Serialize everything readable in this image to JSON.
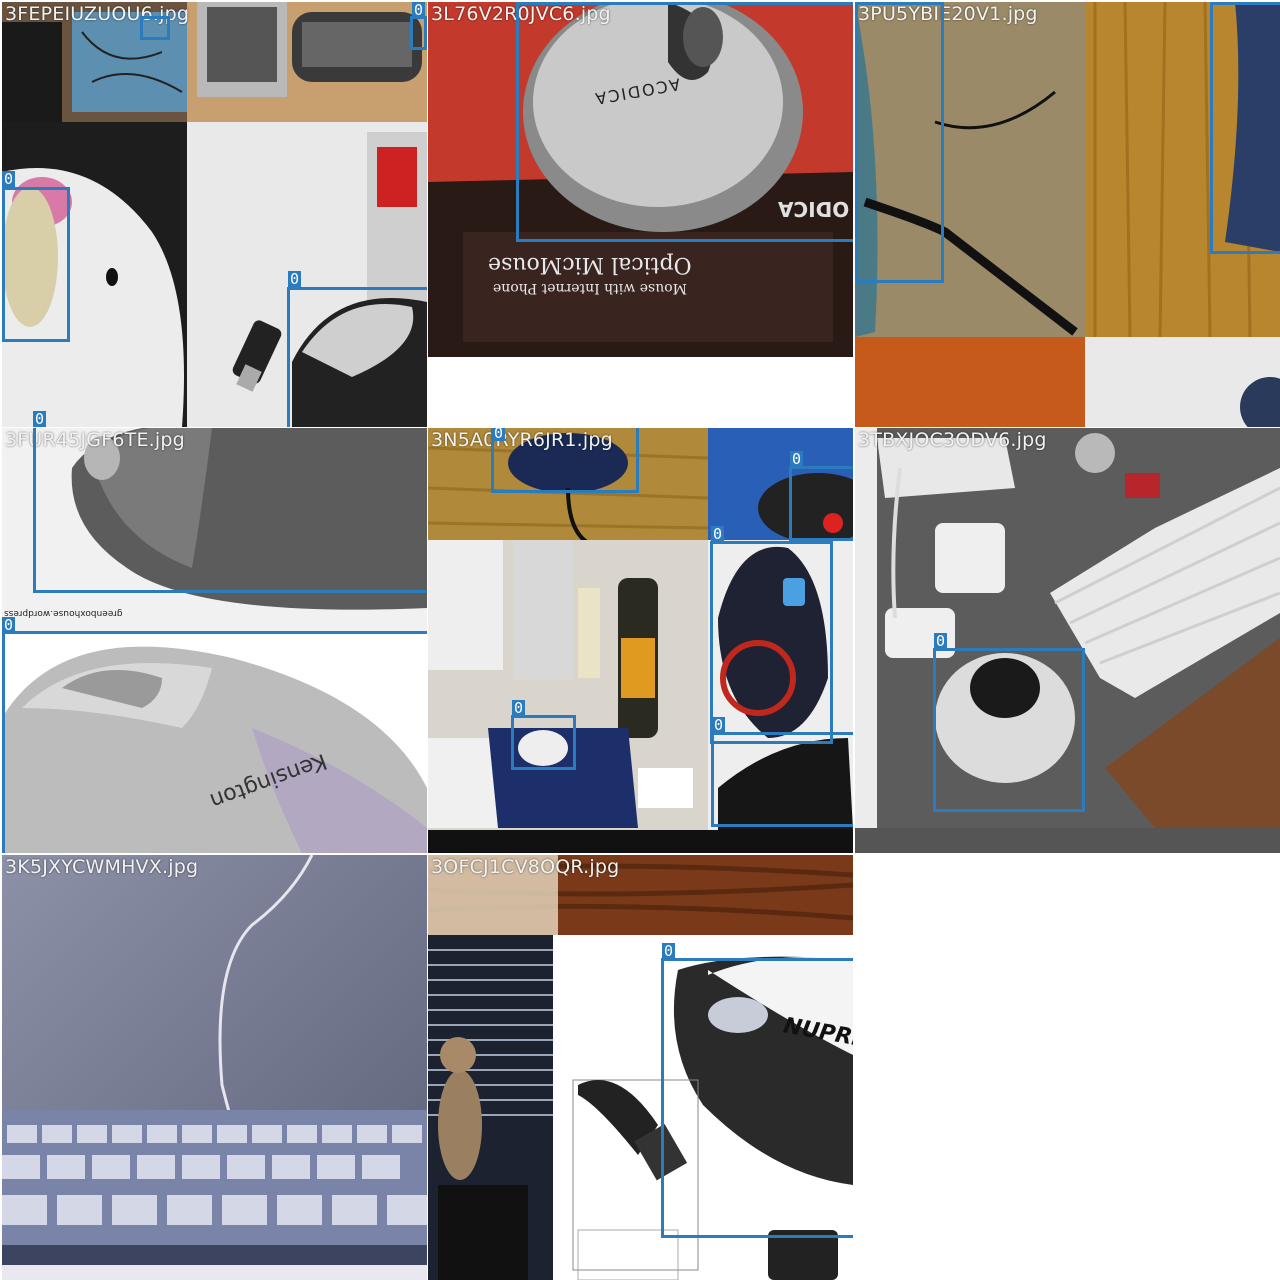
{
  "colors": {
    "box": "#2b7bbf",
    "label_bg": "#2b7bbf",
    "filename_text": "#f2f2f2"
  },
  "tiles": [
    {
      "filename": "3FEPEIUZUOU6.jpg",
      "boxes": [
        {
          "label": "0"
        },
        {
          "label": "0"
        },
        {
          "label": "0"
        },
        {
          "label": "0"
        },
        {
          "label": "0"
        }
      ]
    },
    {
      "filename": "3L76V2R0JVC6.jpg",
      "boxes": [
        {
          "label": "0"
        }
      ],
      "text": {
        "brand": "ACODICA",
        "product": "Optical MicMouse",
        "subtitle": "Mouse with Internet Phone",
        "side_logo": "ODICA"
      }
    },
    {
      "filename": "3PU5YBIE20V1.jpg",
      "boxes": [
        {
          "label": "0"
        },
        {
          "label": "0"
        }
      ]
    },
    {
      "filename": "3FUR45JGF6TE.jpg",
      "boxes": [
        {
          "label": "0"
        },
        {
          "label": "0"
        }
      ],
      "text": {
        "watermark": "greenboxhouse.wordpress",
        "brand": "Kensington"
      }
    },
    {
      "filename": "3N5A0RYR6JR1.jpg",
      "boxes": [
        {
          "label": "0"
        },
        {
          "label": "0"
        },
        {
          "label": "0"
        },
        {
          "label": "0"
        },
        {
          "label": "0"
        }
      ]
    },
    {
      "filename": "3TBXJOC3ODV6.jpg",
      "boxes": [
        {
          "label": "0"
        }
      ]
    },
    {
      "filename": "3K5JXYCWMHVX.jpg",
      "boxes": []
    },
    {
      "filename": "3OFCJ1CV8OQR.jpg",
      "boxes": [
        {
          "label": "0"
        }
      ],
      "text": {
        "brand": "NUPRI"
      }
    }
  ]
}
